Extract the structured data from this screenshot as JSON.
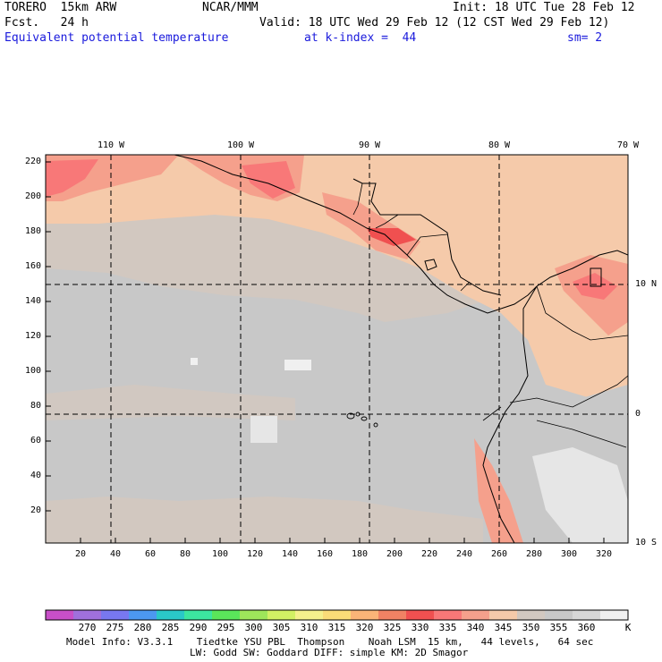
{
  "header": {
    "model": "TORERO  15km ARW",
    "center": "NCAR/MMM",
    "init": "Init: 18 UTC Tue 28 Feb 12",
    "fcst": "Fcst.   24 h",
    "valid": "Valid: 18 UTC Wed 29 Feb 12 (12 CST Wed 29 Feb 12)",
    "field": "Equivalent potential temperature",
    "level": "at k-index =  44",
    "smooth": "sm= 2"
  },
  "map": {
    "lon_labels": [
      "110 W",
      "100 W",
      "90 W",
      "80 W",
      "70 W"
    ],
    "lat_labels": [
      "10 N",
      "0",
      "10 S"
    ],
    "y_ticks": [
      "220",
      "200",
      "180",
      "160",
      "140",
      "120",
      "100",
      "80",
      "60",
      "40",
      "20"
    ],
    "x_ticks": [
      "20",
      "40",
      "60",
      "80",
      "100",
      "120",
      "140",
      "160",
      "180",
      "200",
      "220",
      "240",
      "260",
      "280",
      "300",
      "320"
    ]
  },
  "colorbar": {
    "levels": [
      "270",
      "275",
      "280",
      "285",
      "290",
      "295",
      "300",
      "305",
      "310",
      "315",
      "320",
      "325",
      "330",
      "335",
      "340",
      "345",
      "350",
      "355",
      "360"
    ],
    "unit": "K",
    "colors": [
      "#c84fc8",
      "#a070dc",
      "#7878f0",
      "#4c98f0",
      "#2ac8c8",
      "#3ce6a0",
      "#5ae65a",
      "#9ee65a",
      "#d2f064",
      "#f5f08c",
      "#fadc78",
      "#fab478",
      "#f08264",
      "#f05050",
      "#f87878",
      "#f5a08c",
      "#f5caaa",
      "#d2c8c0",
      "#c8c8c8",
      "#d7d7d7",
      "#f0f0f0"
    ]
  },
  "footer": {
    "line1": "Model Info: V3.3.1    Tiedtke YSU PBL  Thompson    Noah LSM  15 km,   44 levels,   64 sec",
    "line2": "LW: Godd SW: Goddard DIFF: simple KM: 2D Smagor"
  }
}
